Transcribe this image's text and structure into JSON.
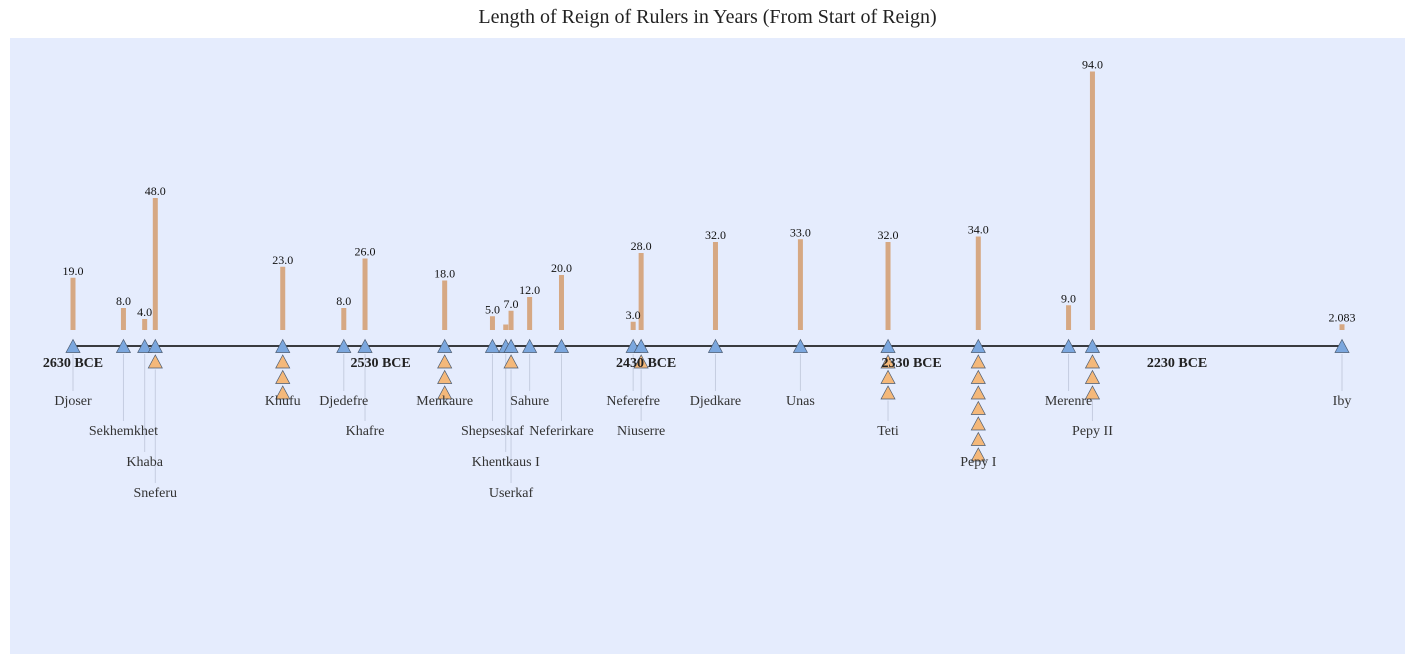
{
  "chart_data": {
    "type": "timeline",
    "title": "Length of Reign of Rulers in Years (From Start of Reign)",
    "colors": {
      "plot_background": "#e5ecfd",
      "bar": "#d6a883",
      "ruler_marker": "#7ba7de",
      "year_marker": "#f4b87a",
      "axis_line": "#000000",
      "stem": "#c5cde0"
    },
    "year_labels": [
      "2630 BCE",
      "2530 BCE",
      "2430 BCE",
      "2330 BCE",
      "2230 BCE"
    ],
    "year_label_years": [
      -2630,
      -2530,
      -2430,
      -2330,
      -2230
    ],
    "rulers": [
      {
        "name": "Djoser",
        "start": -2630,
        "reign": 19.0,
        "label": "19.0",
        "extra_markers": 0,
        "tier": 0
      },
      {
        "name": "Sekhemkhet",
        "start": -2611,
        "reign": 8.0,
        "label": "8.0",
        "extra_markers": 0,
        "tier": 1
      },
      {
        "name": "Khaba",
        "start": -2603,
        "reign": 4.0,
        "label": "4.0",
        "extra_markers": 0,
        "tier": 2
      },
      {
        "name": "Sneferu",
        "start": -2599,
        "reign": 48.0,
        "label": "48.0",
        "extra_markers": 1,
        "tier": 3
      },
      {
        "name": "Khufu",
        "start": -2551,
        "reign": 23.0,
        "label": "23.0",
        "extra_markers": 3,
        "tier": 0
      },
      {
        "name": "Djedefre",
        "start": -2528,
        "reign": 8.0,
        "label": "8.0",
        "extra_markers": 0,
        "tier": 0
      },
      {
        "name": "Khafre",
        "start": -2520,
        "reign": 26.0,
        "label": "26.0",
        "extra_markers": 0,
        "tier": 1
      },
      {
        "name": "Menkaure",
        "start": -2490,
        "reign": 18.0,
        "label": "18.0",
        "extra_markers": 3,
        "tier": 0
      },
      {
        "name": "Shepseskaf",
        "start": -2472,
        "reign": 5.0,
        "label": "5.0",
        "extra_markers": 0,
        "tier": 1
      },
      {
        "name": "Khentkaus I",
        "start": -2467,
        "reign": 2.0,
        "label": "",
        "extra_markers": 0,
        "tier": 2
      },
      {
        "name": "Userkaf",
        "start": -2465,
        "reign": 7.0,
        "label": "7.0",
        "extra_markers": 1,
        "tier": 3
      },
      {
        "name": "Sahure",
        "start": -2458,
        "reign": 12.0,
        "label": "12.0",
        "extra_markers": 0,
        "tier": 0
      },
      {
        "name": "Neferirkare",
        "start": -2446,
        "reign": 20.0,
        "label": "20.0",
        "extra_markers": 0,
        "tier": 1
      },
      {
        "name": "Neferefre",
        "start": -2419,
        "reign": 3.0,
        "label": "3.0",
        "extra_markers": 0,
        "tier": 0
      },
      {
        "name": "Niuserre",
        "start": -2416,
        "reign": 28.0,
        "label": "28.0",
        "extra_markers": 1,
        "tier": 1
      },
      {
        "name": "Djedkare",
        "start": -2388,
        "reign": 32.0,
        "label": "32.0",
        "extra_markers": 0,
        "tier": 0
      },
      {
        "name": "Unas",
        "start": -2356,
        "reign": 33.0,
        "label": "33.0",
        "extra_markers": 0,
        "tier": 0
      },
      {
        "name": "Teti",
        "start": -2323,
        "reign": 32.0,
        "label": "32.0",
        "extra_markers": 3,
        "tier": 1
      },
      {
        "name": "Pepy I",
        "start": -2289,
        "reign": 34.0,
        "label": "34.0",
        "extra_markers": 7,
        "tier": 2
      },
      {
        "name": "Merenre",
        "start": -2255,
        "reign": 9.0,
        "label": "9.0",
        "extra_markers": 0,
        "tier": 0
      },
      {
        "name": "Pepy II",
        "start": -2246,
        "reign": 94.0,
        "label": "94.0",
        "extra_markers": 3,
        "tier": 1
      },
      {
        "name": "Iby",
        "start": -2152,
        "reign": 2.083,
        "label": "2.083",
        "extra_markers": 0,
        "tier": 0
      }
    ]
  }
}
